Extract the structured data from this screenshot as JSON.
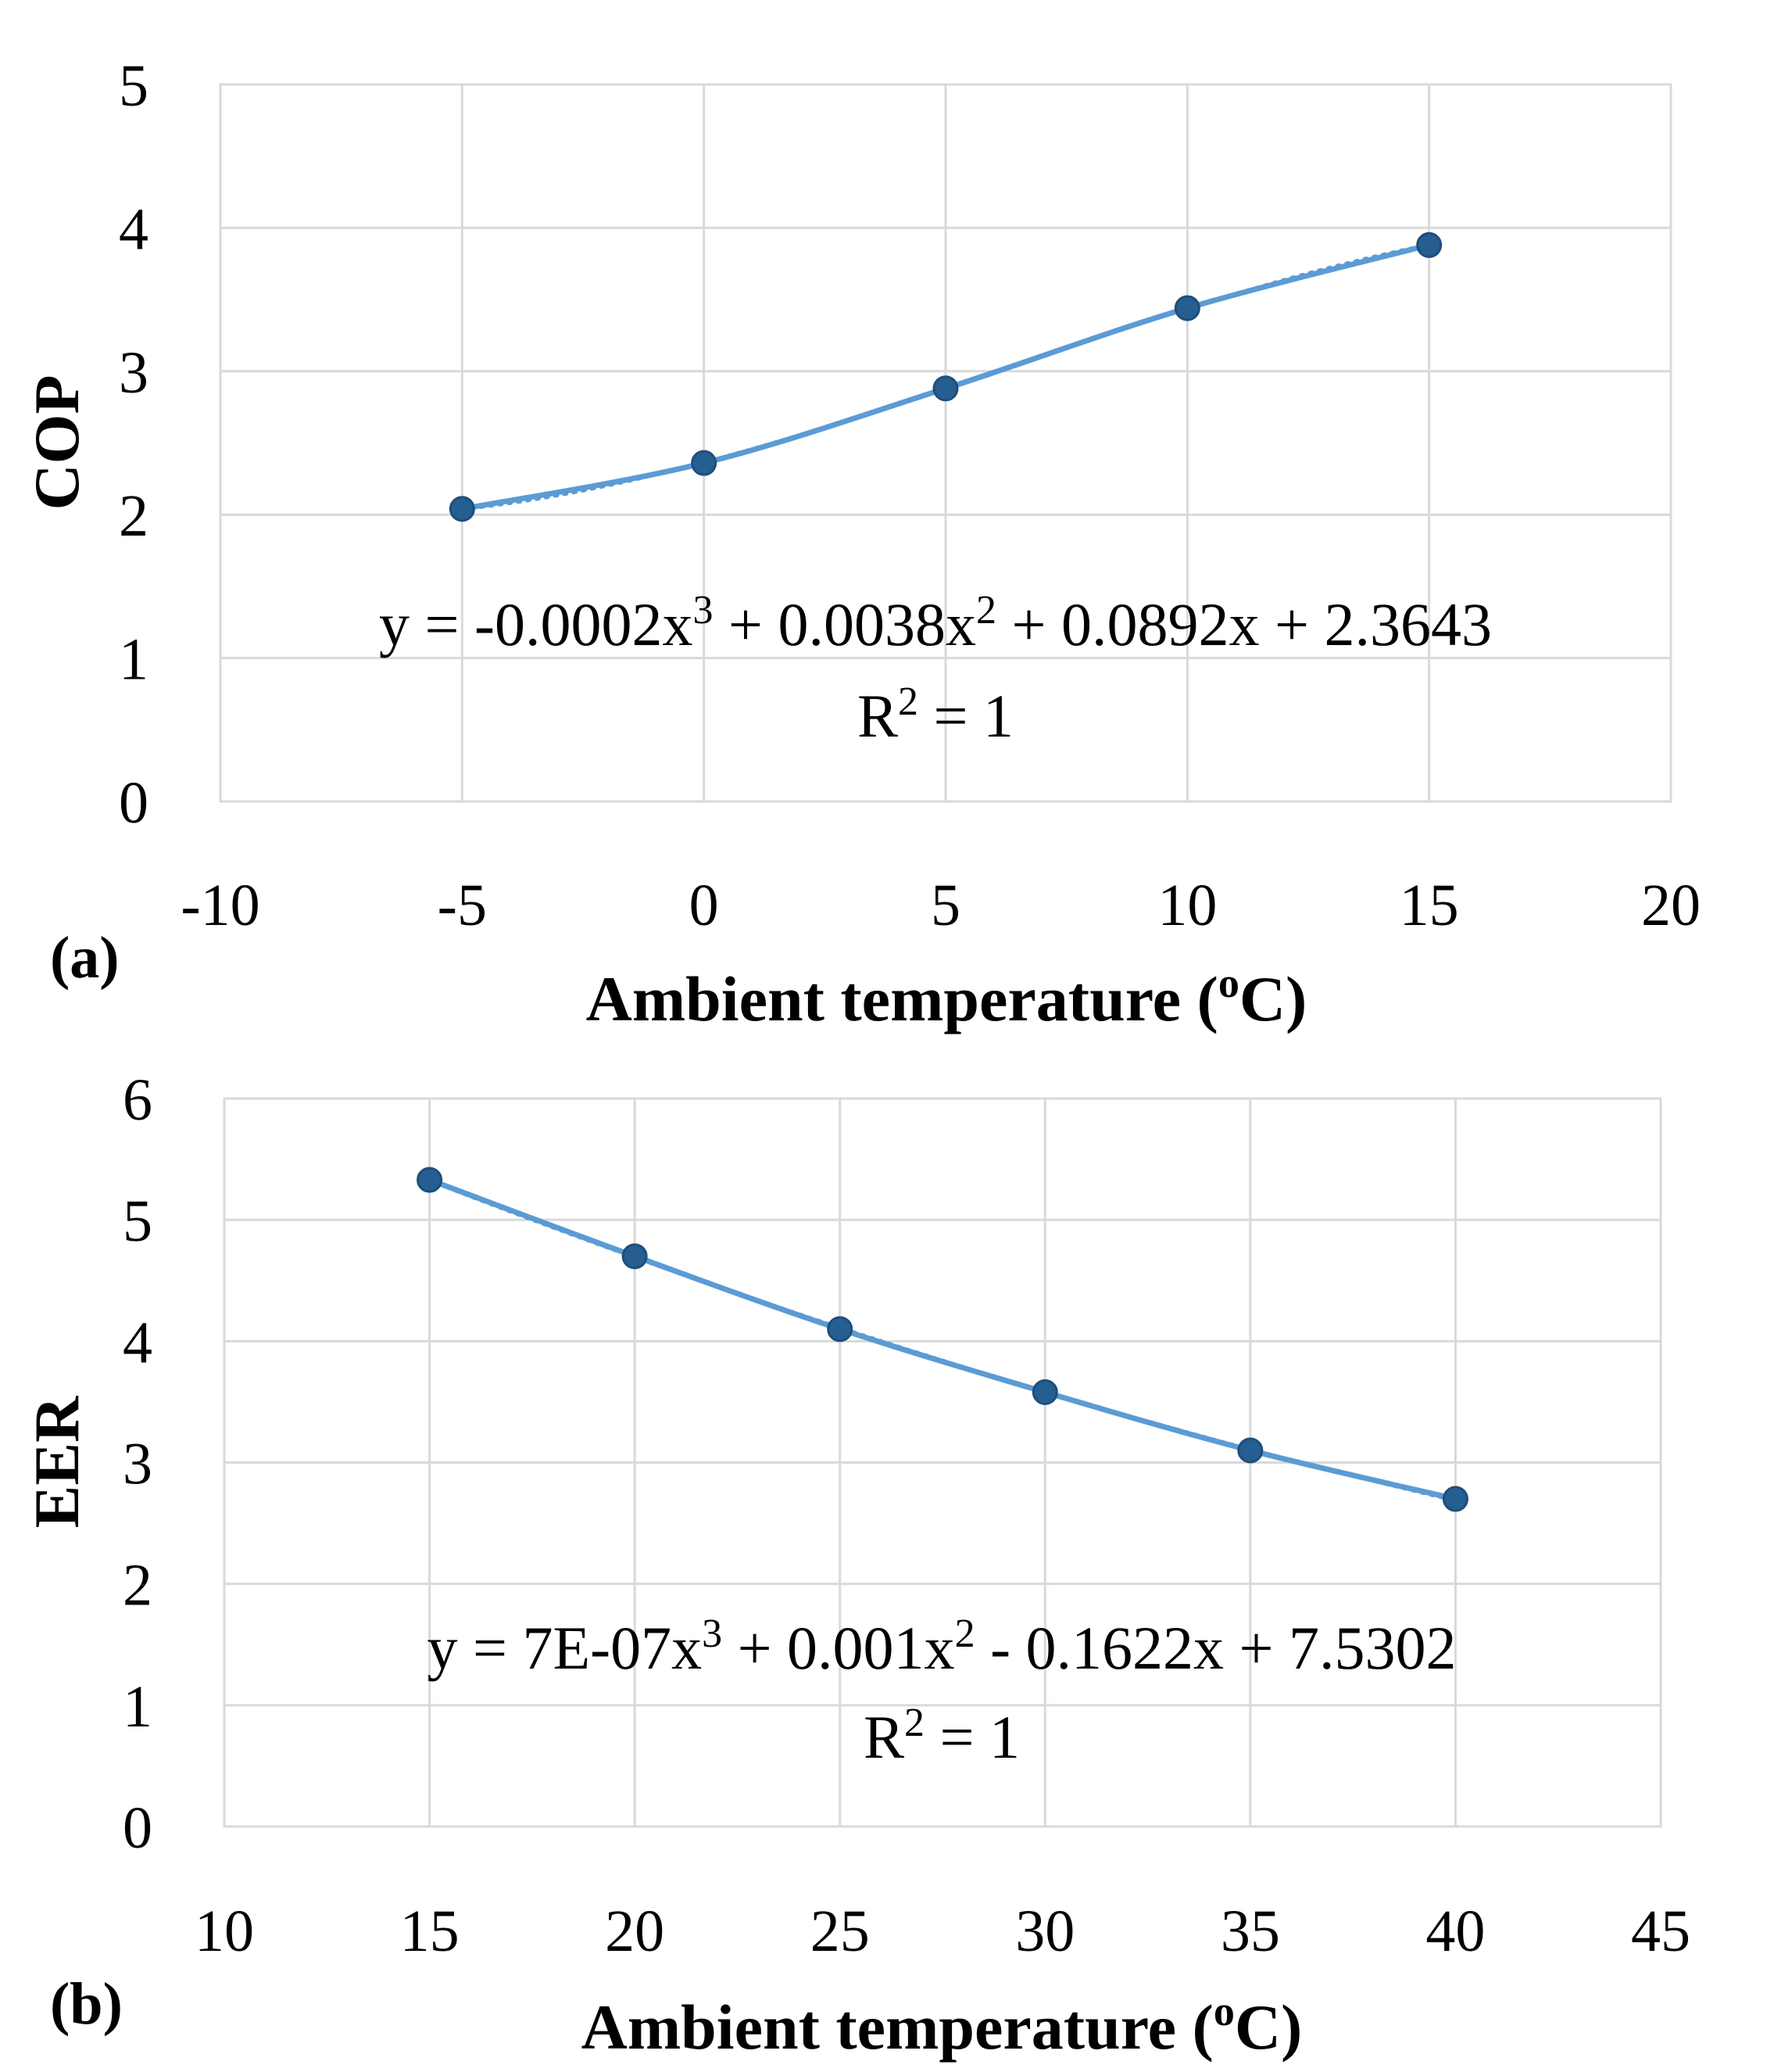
{
  "chart_data": [
    {
      "type": "scatter",
      "panel_label": "(a)",
      "xlabel": "Ambient temperature (",
      "xlabel_sup": "o",
      "xlabel_end": "C)",
      "ylabel": "COP",
      "xlim": [
        -10,
        20
      ],
      "ylim": [
        0,
        5
      ],
      "xticks": [
        -10,
        -5,
        0,
        5,
        10,
        15,
        20
      ],
      "yticks": [
        0,
        1,
        2,
        3,
        4,
        5
      ],
      "grid": true,
      "x": [
        -5,
        0,
        5,
        10,
        15
      ],
      "y": [
        2.04,
        2.36,
        2.88,
        3.44,
        3.88
      ],
      "trendline": {
        "kind": "cubic",
        "coefficients": [
          -0.0002,
          0.0038,
          0.0892,
          2.3643
        ]
      },
      "equation": {
        "line1_parts": [
          "y = -0.0002x",
          "3",
          " + 0.0038x",
          "2",
          " + 0.0892x + 2.3643"
        ],
        "line2_parts": [
          "R",
          "2",
          " = 1"
        ]
      },
      "color": "#5b9bd5",
      "marker_color": "#255e91"
    },
    {
      "type": "scatter",
      "panel_label": "(b)",
      "xlabel": "Ambient temperature (",
      "xlabel_sup": "o",
      "xlabel_end": "C)",
      "ylabel": "EER",
      "xlim": [
        10,
        45
      ],
      "ylim": [
        0,
        6
      ],
      "xticks": [
        10,
        15,
        20,
        25,
        30,
        35,
        40,
        45
      ],
      "yticks": [
        0,
        1,
        2,
        3,
        4,
        5,
        6
      ],
      "grid": true,
      "x": [
        15,
        20,
        25,
        30,
        35,
        40
      ],
      "y": [
        5.33,
        4.7,
        4.1,
        3.58,
        3.1,
        2.7
      ],
      "trendline": {
        "kind": "cubic",
        "coefficients": [
          7e-07,
          0.001,
          -0.1622,
          7.5302
        ]
      },
      "equation": {
        "line1_parts": [
          "y = 7E-07x",
          "3",
          " + 0.001x",
          "2",
          " - 0.1622x + 7.5302"
        ],
        "line2_parts": [
          "R",
          "2",
          " = 1"
        ]
      },
      "color": "#5b9bd5",
      "marker_color": "#255e91"
    }
  ]
}
